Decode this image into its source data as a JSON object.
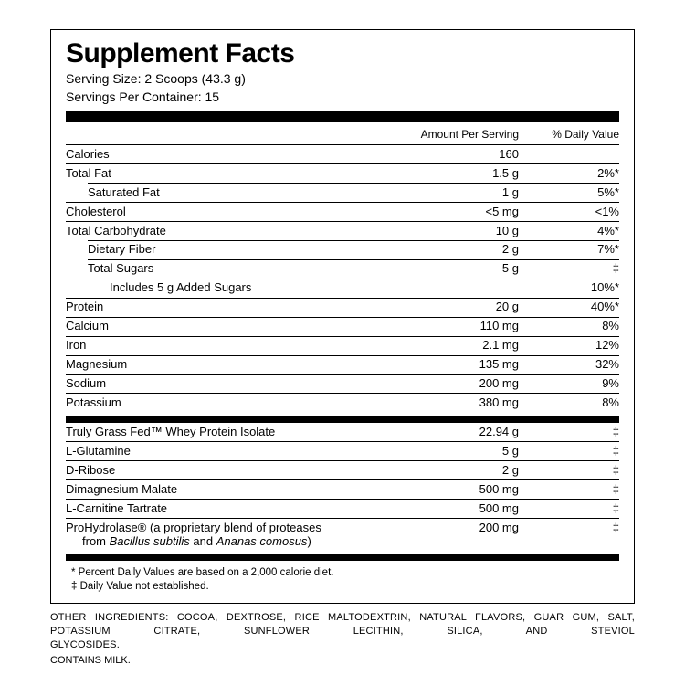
{
  "title": "Supplement Facts",
  "serving_size": "Serving Size: 2 Scoops (43.3 g)",
  "servings_per": "Servings Per Container: 15",
  "header_amount": "Amount Per Serving",
  "header_dv": "% Daily Value",
  "rows_a": [
    {
      "name": "Calories",
      "amt": "160",
      "dv": "",
      "indent": 0
    },
    {
      "name": "Total Fat",
      "amt": "1.5 g",
      "dv": "2%*",
      "indent": 0
    },
    {
      "name": "Saturated Fat",
      "amt": "1 g",
      "dv": "5%*",
      "indent": 1
    },
    {
      "name": "Cholesterol",
      "amt": "<5 mg",
      "dv": "<1%",
      "indent": 0
    },
    {
      "name": "Total Carbohydrate",
      "amt": "10 g",
      "dv": "4%*",
      "indent": 0
    },
    {
      "name": "Dietary Fiber",
      "amt": "2 g",
      "dv": "7%*",
      "indent": 1
    },
    {
      "name": "Total Sugars",
      "amt": "5 g",
      "dv": "‡",
      "indent": 1
    },
    {
      "name": "Includes 5 g Added Sugars",
      "amt": "",
      "dv": "10%*",
      "indent": 2
    },
    {
      "name": "Protein",
      "amt": "20 g",
      "dv": "40%*",
      "indent": 0
    },
    {
      "name": "Calcium",
      "amt": "110 mg",
      "dv": "8%",
      "indent": 0
    },
    {
      "name": "Iron",
      "amt": "2.1 mg",
      "dv": "12%",
      "indent": 0
    },
    {
      "name": "Magnesium",
      "amt": "135 mg",
      "dv": "32%",
      "indent": 0
    },
    {
      "name": "Sodium",
      "amt": "200 mg",
      "dv": "9%",
      "indent": 0
    },
    {
      "name": "Potassium",
      "amt": "380 mg",
      "dv": "8%",
      "indent": 0
    }
  ],
  "rows_b": [
    {
      "name": "Truly Grass Fed™ Whey Protein Isolate",
      "amt": "22.94 g",
      "dv": "‡",
      "indent": 0
    },
    {
      "name": "L-Glutamine",
      "amt": "5 g",
      "dv": "‡",
      "indent": 0
    },
    {
      "name": "D-Ribose",
      "amt": "2 g",
      "dv": "‡",
      "indent": 0
    },
    {
      "name": "Dimagnesium Malate",
      "amt": "500 mg",
      "dv": "‡",
      "indent": 0
    },
    {
      "name": "L-Carnitine Tartrate",
      "amt": "500 mg",
      "dv": "‡",
      "indent": 0
    }
  ],
  "prohydrolase": {
    "name_line1": "ProHydrolase® (a proprietary blend of proteases",
    "name_line2_prefix": "from ",
    "name_line2_ital": "Bacillus subtilis",
    "name_line2_mid": " and ",
    "name_line2_ital2": "Ananas comosus",
    "name_line2_suffix": ")",
    "amt": "200 mg",
    "dv": "‡"
  },
  "foot1": "* Percent Daily Values are based on a 2,000 calorie diet.",
  "foot2": "‡ Daily Value not established.",
  "other_line1": "OTHER INGREDIENTS: COCOA, DEXTROSE, RICE MALTODEXTRIN, NATURAL FLAVORS, GUAR GUM, SALT, POTASSIUM CITRATE, SUNFLOWER LECITHIN, SILICA, AND STEVIOL",
  "other_line2": "GLYCOSIDES.",
  "contains": "CONTAINS MILK."
}
